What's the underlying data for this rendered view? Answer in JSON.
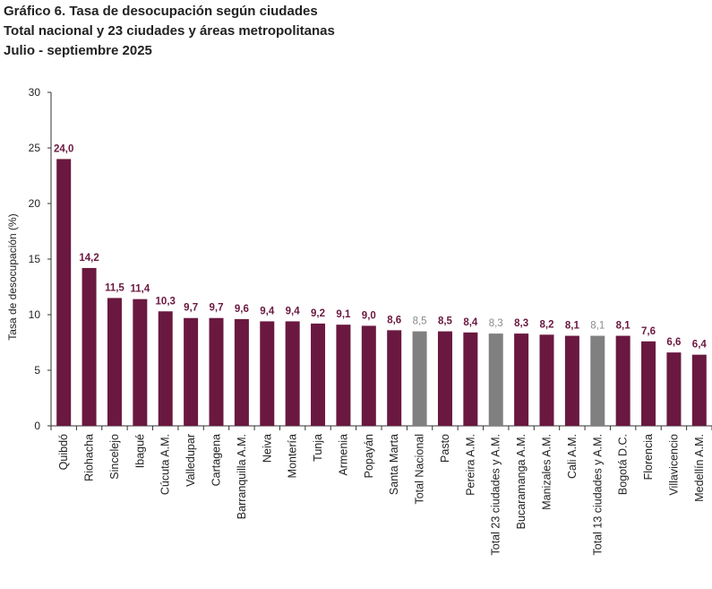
{
  "title_lines": [
    "Gráfico 6. Tasa de desocupación según ciudades",
    "Total nacional y 23 ciudades y áreas metropolitanas",
    "Julio - septiembre 2025"
  ],
  "colors": {
    "city": "#6A1840",
    "aggregate": "#808080",
    "axis": "#333333"
  },
  "chart_data": {
    "type": "bar",
    "title": "Gráfico 6. Tasa de desocupación según ciudades",
    "ylabel": "Tasa de desocupación (%)",
    "xlabel": "",
    "ylim": [
      0,
      30
    ],
    "yticks": [
      0,
      5,
      10,
      15,
      20,
      25,
      30
    ],
    "categories": [
      "Quibdó",
      "Riohacha",
      "Sincelejo",
      "Ibagué",
      "Cúcuta A.M.",
      "Valledupar",
      "Cartagena",
      "Barranquilla A.M.",
      "Neiva",
      "Montería",
      "Tunja",
      "Armenia",
      "Popayán",
      "Santa Marta",
      "Total Nacional",
      "Pasto",
      "Pereira A.M.",
      "Total 23 ciudades y A.M.",
      "Bucaramanga A.M.",
      "Manizales A.M.",
      "Cali A.M.",
      "Total 13 ciudades y A.M.",
      "Bogotá D.C.",
      "Florencia",
      "Villavicencio",
      "Medellín A.M."
    ],
    "values": [
      24.0,
      14.2,
      11.5,
      11.4,
      10.3,
      9.7,
      9.7,
      9.6,
      9.4,
      9.4,
      9.2,
      9.1,
      9.0,
      8.6,
      8.5,
      8.5,
      8.4,
      8.3,
      8.3,
      8.2,
      8.1,
      8.1,
      8.1,
      7.6,
      6.6,
      6.4
    ],
    "labels": [
      "24,0",
      "14,2",
      "11,5",
      "11,4",
      "10,3",
      "9,7",
      "9,7",
      "9,6",
      "9,4",
      "9,4",
      "9,2",
      "9,1",
      "9,0",
      "8,6",
      "8,5",
      "8,5",
      "8,4",
      "8,3",
      "8,3",
      "8,2",
      "8,1",
      "8,1",
      "8,1",
      "7,6",
      "6,6",
      "6,4"
    ],
    "aggregate": [
      false,
      false,
      false,
      false,
      false,
      false,
      false,
      false,
      false,
      false,
      false,
      false,
      false,
      false,
      true,
      false,
      false,
      true,
      false,
      false,
      false,
      true,
      false,
      false,
      false,
      false
    ]
  }
}
